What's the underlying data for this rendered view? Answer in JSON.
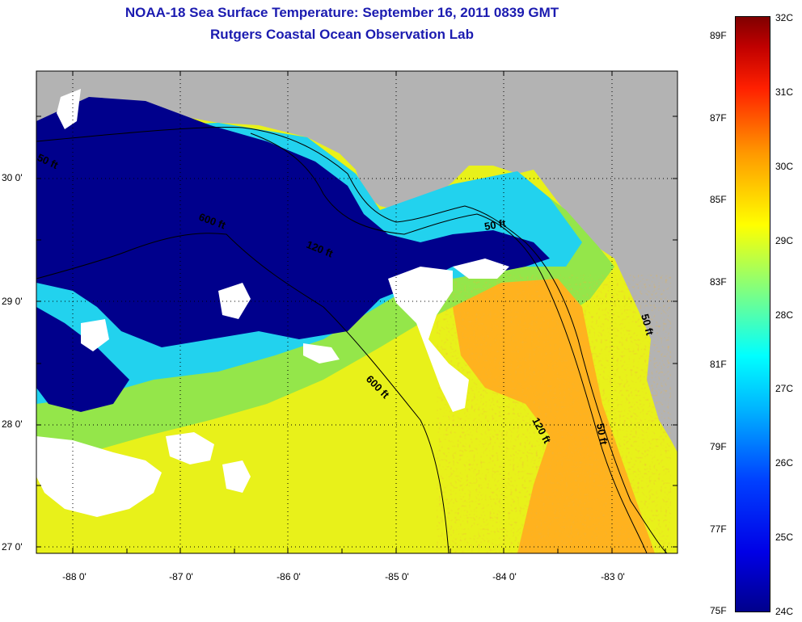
{
  "title": {
    "line1": "NOAA-18 Sea Surface Temperature:  September 16, 2011 0839 GMT",
    "line2": "Rutgers Coastal Ocean Observation Lab"
  },
  "axes": {
    "y_labels": [
      "30 0'",
      "29 0'",
      "28 0'",
      "27 0'"
    ],
    "x_labels": [
      "-88 0'",
      "-87 0'",
      "-86 0'",
      "-85 0'",
      "-84 0'",
      "-83 0'"
    ],
    "lat_range": [
      26.97,
      30.85
    ],
    "lon_range": [
      -88.33,
      -82.45
    ]
  },
  "depth_contours": {
    "labels": [
      "600 ft",
      "120 ft",
      "50 ft",
      "50 ft",
      "600 ft",
      "120 ft",
      "50 ft",
      "50 ft"
    ]
  },
  "colorbar": {
    "fahrenheit_labels": [
      "89F",
      "87F",
      "85F",
      "83F",
      "81F",
      "79F",
      "77F",
      "75F"
    ],
    "celsius_labels": [
      "32C",
      "31C",
      "30C",
      "29C",
      "28C",
      "27C",
      "26C",
      "25C",
      "24C"
    ],
    "range_c": [
      24,
      32
    ]
  },
  "colors": {
    "title": "#1b1bb0",
    "land": "#b3b3b3",
    "cloud": "#ffffff",
    "cold_water": "#00008c",
    "warm_water": "#ff9a1e"
  }
}
